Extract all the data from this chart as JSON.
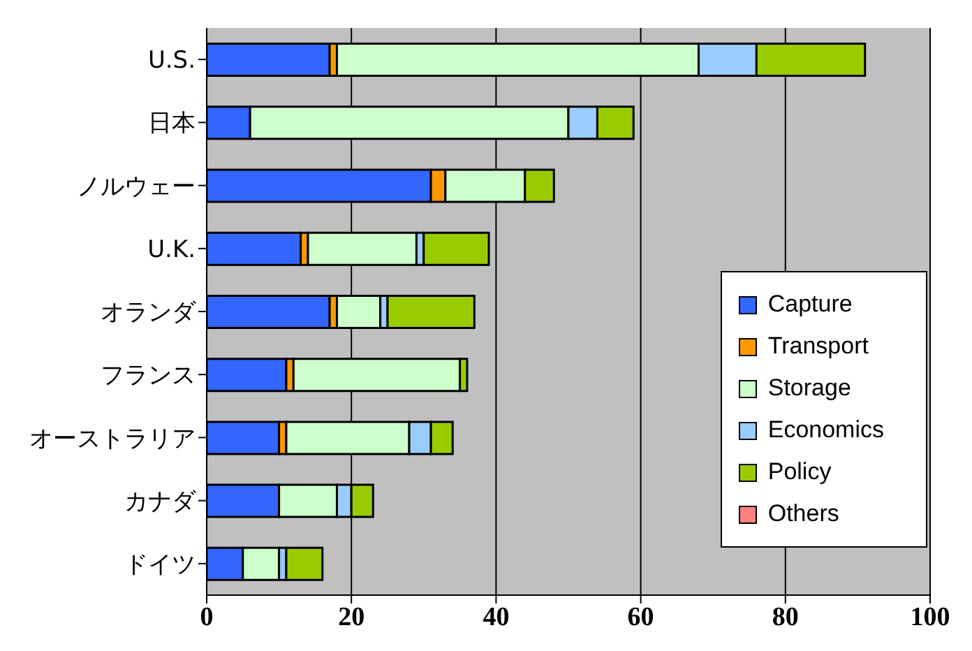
{
  "chart_data": {
    "type": "bar",
    "orientation": "horizontal",
    "stacked": true,
    "categories": [
      "U.S.",
      "日本",
      "ノルウェー",
      "U.K.",
      "オランダ",
      "フランス",
      "オーストラリア",
      "カナダ",
      "ドイツ"
    ],
    "series": [
      {
        "name": "Capture",
        "color": "#3366ff",
        "values": [
          17,
          6,
          31,
          13,
          17,
          11,
          10,
          10,
          5
        ]
      },
      {
        "name": "Transport",
        "color": "#ff9900",
        "values": [
          1,
          0,
          2,
          1,
          1,
          1,
          1,
          0,
          0
        ]
      },
      {
        "name": "Storage",
        "color": "#ccffcc",
        "values": [
          50,
          44,
          11,
          15,
          6,
          23,
          17,
          8,
          5
        ]
      },
      {
        "name": "Economics",
        "color": "#99ccff",
        "values": [
          8,
          4,
          0,
          1,
          1,
          0,
          3,
          2,
          1
        ]
      },
      {
        "name": "Policy",
        "color": "#99cc00",
        "values": [
          15,
          5,
          4,
          9,
          12,
          1,
          3,
          3,
          5
        ]
      },
      {
        "name": "Others",
        "color": "#ff8080",
        "values": [
          0,
          0,
          0,
          0,
          0,
          0,
          0,
          0,
          0
        ]
      }
    ],
    "xlim": [
      0,
      100
    ],
    "xticks": [
      0,
      20,
      40,
      60,
      80,
      100
    ],
    "grid": "x",
    "legend": "bottom right"
  }
}
